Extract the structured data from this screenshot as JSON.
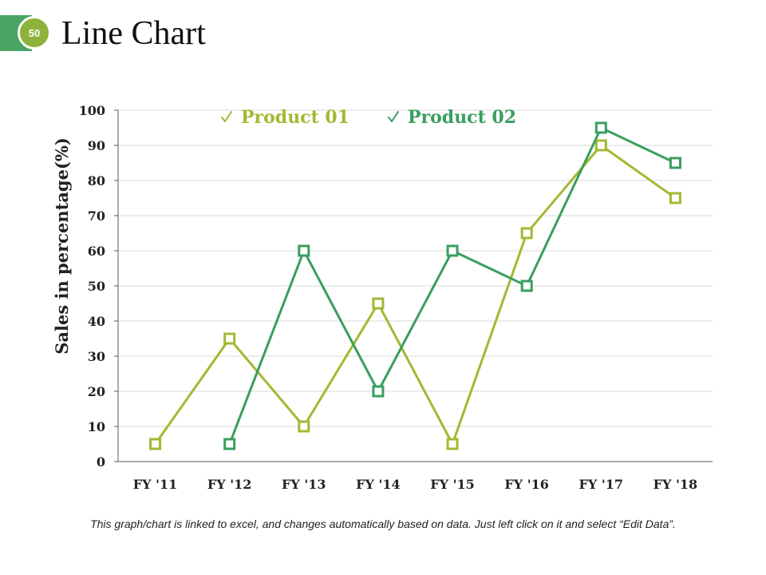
{
  "slide": {
    "number": "50",
    "title": "Line Chart",
    "footnote": "This graph/chart is linked to excel, and changes automatically based on data. Just left click on it and select “Edit Data”."
  },
  "colors": {
    "accent_green": "#4aa564",
    "badge_green": "#8db33a"
  },
  "chart_data": {
    "type": "line",
    "title": "",
    "xlabel": "",
    "ylabel": "Sales in percentage(%)",
    "categories": [
      "FY '11",
      "FY '12",
      "FY '13",
      "FY '14",
      "FY '15",
      "FY '16",
      "FY '17",
      "FY '18"
    ],
    "ylim": [
      0,
      100
    ],
    "yticks": [
      0,
      10,
      20,
      30,
      40,
      50,
      60,
      70,
      80,
      90,
      100
    ],
    "grid": true,
    "legend_position": "top",
    "series": [
      {
        "name": "Product 01",
        "color": "#a5b832",
        "values": [
          5,
          35,
          10,
          45,
          5,
          65,
          90,
          75
        ]
      },
      {
        "name": "Product 02",
        "color": "#3a9e5f",
        "values": [
          null,
          5,
          60,
          20,
          60,
          50,
          95,
          85
        ]
      }
    ]
  }
}
